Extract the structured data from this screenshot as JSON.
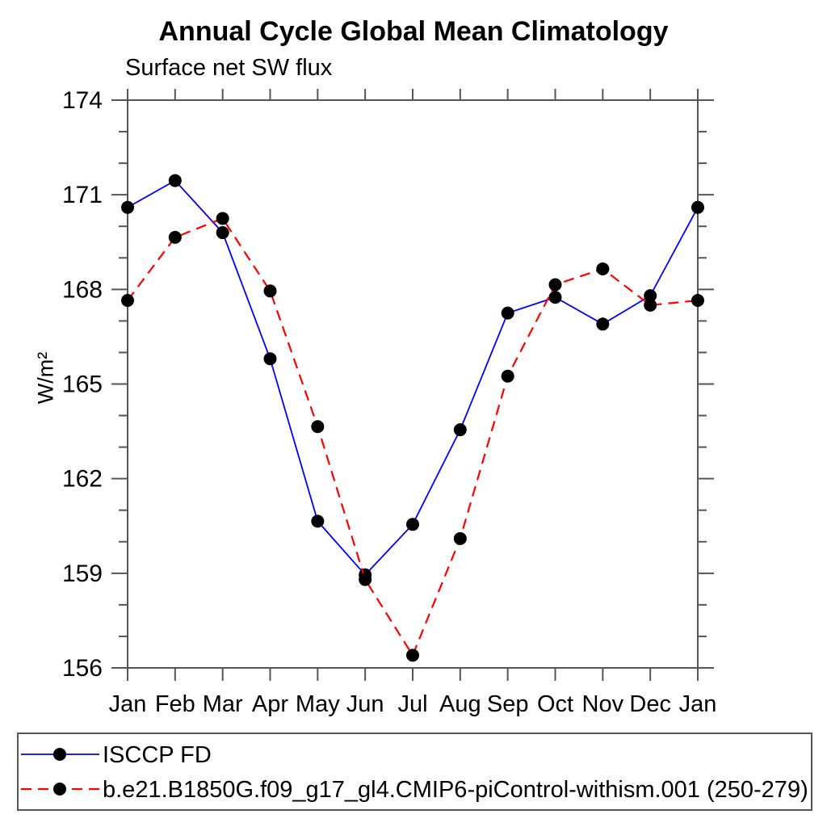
{
  "chart_data": {
    "type": "line",
    "title": "Annual Cycle Global Mean Climatology",
    "subtitle": "Surface net SW flux",
    "ylabel": "W/m²",
    "categories": [
      "Jan",
      "Feb",
      "Mar",
      "Apr",
      "May",
      "Jun",
      "Jul",
      "Aug",
      "Sep",
      "Oct",
      "Nov",
      "Dec",
      "Jan"
    ],
    "ylim": [
      156,
      174
    ],
    "yticks": [
      156,
      159,
      162,
      165,
      168,
      171,
      174
    ],
    "ytick_minor_step": 1,
    "grid": false,
    "legend_position": "bottom-box",
    "marker_shape": "circle",
    "marker_color": "#000000",
    "axis_color": "#555555",
    "series": [
      {
        "name": "ISCCP FD",
        "color": "#0000ff",
        "style": "solid",
        "values": [
          170.6,
          171.45,
          169.8,
          165.8,
          160.65,
          158.95,
          160.55,
          163.55,
          167.25,
          167.75,
          166.9,
          167.8,
          170.6
        ]
      },
      {
        "name": "b.e21.B1850G.f09_g17_gl4.CMIP6-piControl-withism.001 (250-279)",
        "color": "#ff0000",
        "style": "dashed",
        "values": [
          167.65,
          169.65,
          170.25,
          167.95,
          163.65,
          158.8,
          156.4,
          160.1,
          165.25,
          168.15,
          168.65,
          167.5,
          167.65
        ]
      }
    ]
  }
}
